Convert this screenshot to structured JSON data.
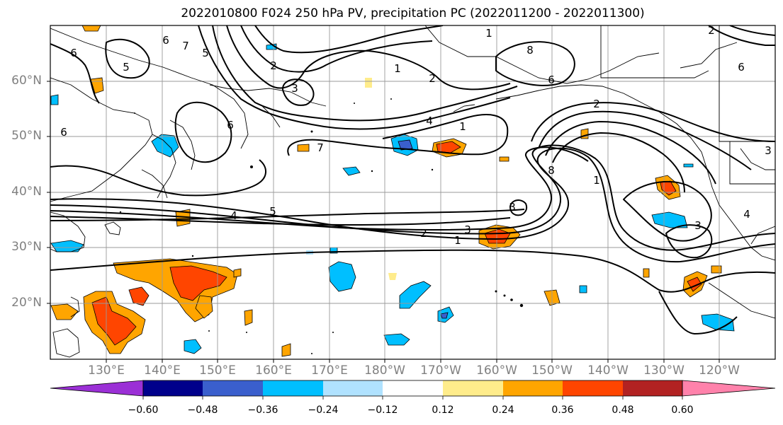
{
  "title": "2022010800 F024 250 hPa PV, precipitation PC (2022011200 - 2022011300)",
  "lat_labels": [
    "60°N",
    "50°N",
    "40°N",
    "30°N",
    "20°N"
  ],
  "lon_labels": [
    "130°E",
    "140°E",
    "150°E",
    "160°E",
    "170°E",
    "180°W",
    "170°W",
    "160°W",
    "150°W",
    "140°W",
    "130°W",
    "120°W"
  ],
  "colorbar": {
    "colors": [
      "#9b30d6",
      "#00008b",
      "#3a5fcd",
      "#00bfff",
      "#b0e2ff",
      "#ffffff",
      "#ffec8b",
      "#ffa500",
      "#ff4500",
      "#b22222",
      "#ff82ab"
    ],
    "ticks": [
      "−0.60",
      "−0.48",
      "−0.36",
      "−0.24",
      "−0.12",
      "0.12",
      "0.24",
      "0.36",
      "0.48",
      "0.60"
    ]
  },
  "contour_labels": [
    "1",
    "2",
    "3",
    "4",
    "5",
    "6",
    "7",
    "1",
    "2",
    "3",
    "4",
    "5",
    "6",
    "1",
    "2",
    "3",
    "5",
    "6",
    "7",
    "8",
    "1",
    "2",
    "3",
    "6",
    "6",
    "4",
    "1",
    "8",
    "2",
    "6",
    "3"
  ]
}
